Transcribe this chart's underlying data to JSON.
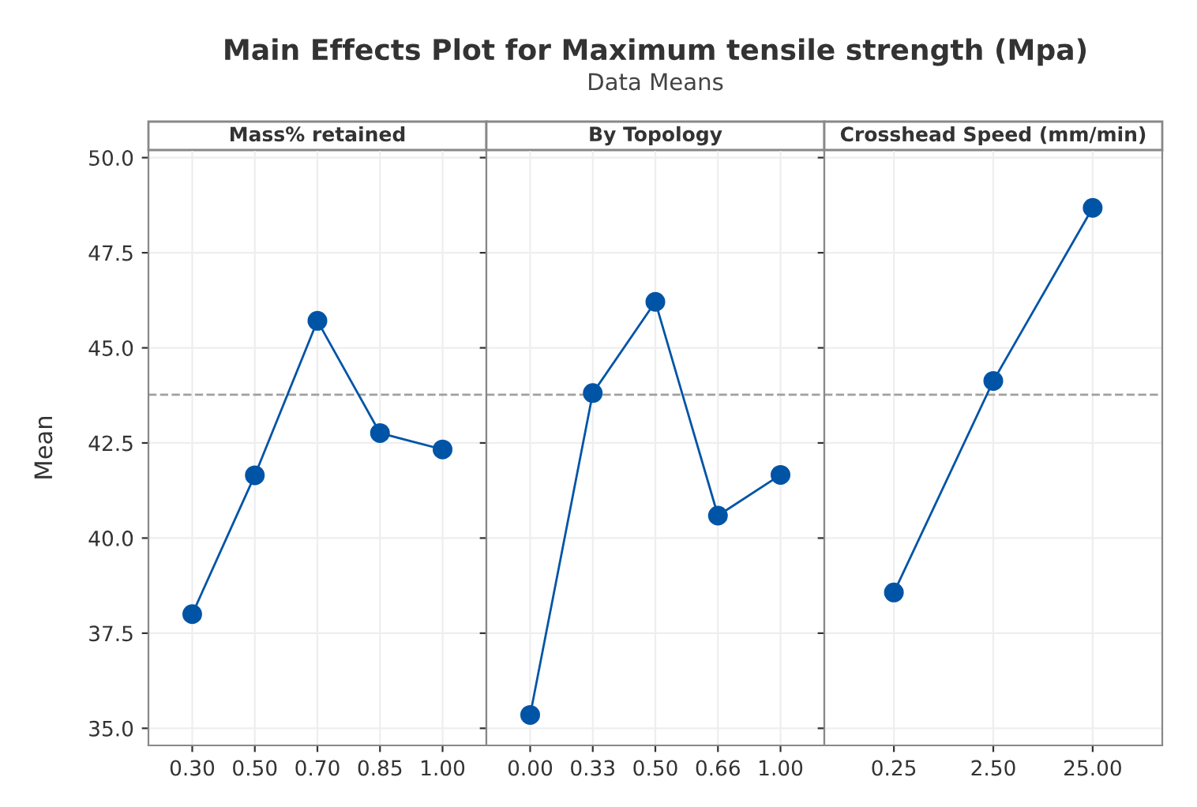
{
  "chart_data": [
    {
      "type": "line",
      "title": "Mass% retained",
      "ylabel": "Mean",
      "annotations": [
        "Main Effects Plot for Maximum tensile strength (Mpa)",
        "Data Means"
      ],
      "categories": [
        "0.30",
        "0.50",
        "0.70",
        "0.85",
        "1.00"
      ],
      "series": [
        {
          "color": "#0054a6",
          "values": [
            38.0,
            41.65,
            45.71,
            42.76,
            42.33
          ]
        }
      ],
      "ylim": [
        34.55,
        50.2
      ],
      "yticks": [
        {
          "value": 35,
          "label": "35.0"
        },
        37.5,
        {
          "value": 40,
          "label": "40.0"
        },
        42.5,
        {
          "value": 45,
          "label": "45.0"
        },
        47.5,
        {
          "value": 50,
          "label": "50.0"
        }
      ],
      "ref_lines": [
        {
          "axis": "y",
          "value": 43.77,
          "color": "#a0a0a0",
          "line_style": "dashed"
        }
      ],
      "grid": true,
      "marker": "circle",
      "line_style": "solid"
    },
    {
      "type": "line",
      "title": "By Topology",
      "tick_labels": "x",
      "categories": [
        "0.00",
        "0.33",
        "0.50",
        "0.66",
        "1.00"
      ],
      "series": [
        {
          "color": "#0054a6",
          "values": [
            35.35,
            43.81,
            46.21,
            40.59,
            41.66
          ]
        }
      ],
      "ylim": [
        34.55,
        50.2
      ],
      "ref_lines": [
        {
          "axis": "y",
          "value": 43.77,
          "color": "#a0a0a0",
          "line_style": "dashed"
        }
      ],
      "grid": true,
      "marker": "circle",
      "line_style": "solid"
    },
    {
      "type": "line",
      "title": "Crosshead Speed (mm/min)",
      "tick_labels": "x",
      "categories": [
        "0.25",
        "2.50",
        "25.00"
      ],
      "series": [
        {
          "color": "#0054a6",
          "values": [
            38.57,
            44.13,
            48.68
          ]
        }
      ],
      "ylim": [
        34.55,
        50.2
      ],
      "ref_lines": [
        {
          "axis": "y",
          "value": 43.77,
          "color": "#a0a0a0",
          "line_style": "dashed"
        }
      ],
      "grid": true,
      "marker": "circle",
      "line_style": "solid"
    }
  ]
}
